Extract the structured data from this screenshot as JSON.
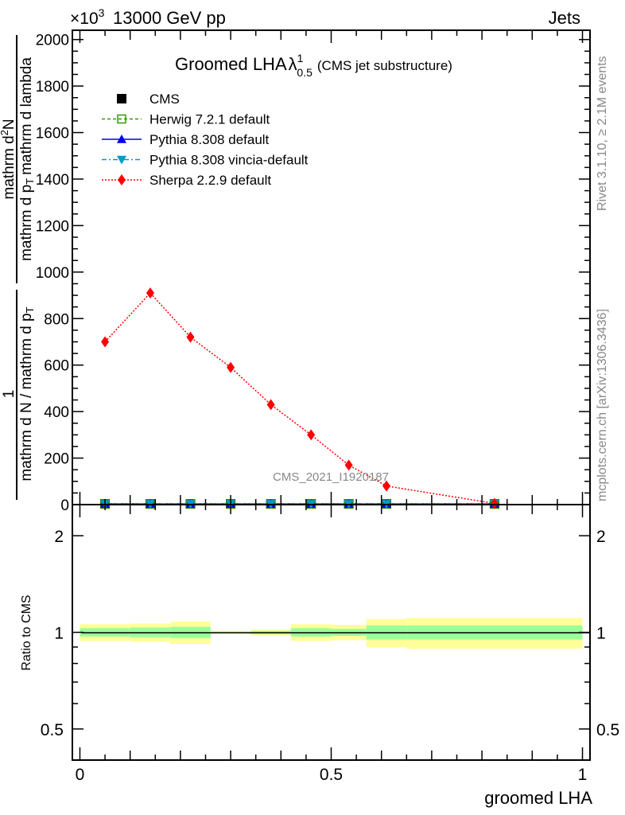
{
  "header": {
    "left": "13000 GeV pp",
    "right": "Jets",
    "multiplier_base": "×10",
    "multiplier_exp": "3"
  },
  "side_text": {
    "rivet": "Rivet 3.1.10, ≥ 2.1M events",
    "mcplots": "mcplots.cern.ch [arXiv:1306.3436]"
  },
  "watermark": "CMS_2021_I1920187",
  "chart_data": [
    {
      "type": "scatter",
      "panel": "main",
      "title_main": "Groomed LHA",
      "title_symbol": "λ",
      "title_sup": "1",
      "title_sub": "0.5",
      "title_suffix": "(CMS jet substructure)",
      "xlabel": "groomed LHA",
      "ylabel_parts": [
        "1",
        "mathrm d N / mathrm d p",
        "T",
        "mathrm d",
        "2",
        "N",
        "mathrm d p",
        "T",
        "mathrm d lambda"
      ],
      "xlim": [
        -0.015,
        1.015
      ],
      "ylim": [
        0,
        2040
      ],
      "yticks": [
        "0",
        "200",
        "400",
        "600",
        "800",
        "1000",
        "1200",
        "1400",
        "1600",
        "1800",
        "2000"
      ],
      "xticks": [
        "0",
        "0.5",
        "1"
      ],
      "bin_edges": [
        0,
        0.1,
        0.18,
        0.26,
        0.34,
        0.42,
        0.5,
        0.57,
        0.65,
        1.0
      ],
      "x": [
        0.05,
        0.14,
        0.22,
        0.3,
        0.38,
        0.46,
        0.535,
        0.61,
        0.825
      ],
      "legend_position": "top-left",
      "series": [
        {
          "name": "CMS",
          "color": "#000000",
          "marker": "square",
          "values": [
            3,
            3,
            3,
            3,
            3,
            3,
            3,
            3,
            3
          ]
        },
        {
          "name": "Herwig 7.2.1 default",
          "color": "#339900",
          "marker": "open-square",
          "line": "dashed",
          "values": [
            3,
            3,
            3,
            3,
            3,
            3,
            3,
            3,
            3
          ]
        },
        {
          "name": "Pythia 8.308 default",
          "color": "#0000ee",
          "marker": "triangle-up",
          "line": "solid",
          "values": [
            3,
            3,
            3,
            3,
            3,
            3,
            3,
            3,
            3
          ]
        },
        {
          "name": "Pythia 8.308 vincia-default",
          "color": "#0099cc",
          "marker": "triangle-down",
          "line": "dashdot",
          "values": [
            3,
            3,
            3,
            3,
            3,
            3,
            3,
            3,
            3
          ]
        },
        {
          "name": "Sherpa 2.2.9 default",
          "color": "#ff0000",
          "marker": "diamond",
          "line": "dotted",
          "values": [
            700,
            910,
            720,
            590,
            430,
            300,
            170,
            80,
            5
          ]
        }
      ]
    },
    {
      "type": "area",
      "panel": "ratio",
      "ylabel": "Ratio to CMS",
      "yscale": "log",
      "ylim": [
        0.4,
        2.5
      ],
      "yticks": [
        "0.5",
        "1",
        "2"
      ],
      "bin_edges": [
        0,
        0.1,
        0.18,
        0.26,
        0.34,
        0.42,
        0.5,
        0.57,
        0.65,
        1.0
      ],
      "stat_band": [
        0.03,
        0.035,
        0.04,
        0.005,
        0.01,
        0.03,
        0.025,
        0.05,
        0.05
      ],
      "total_band": [
        0.06,
        0.065,
        0.08,
        0.01,
        0.02,
        0.06,
        0.055,
        0.1,
        0.11
      ],
      "band_colors": {
        "stat": "#99ff99",
        "total": "#ffff99"
      }
    }
  ]
}
